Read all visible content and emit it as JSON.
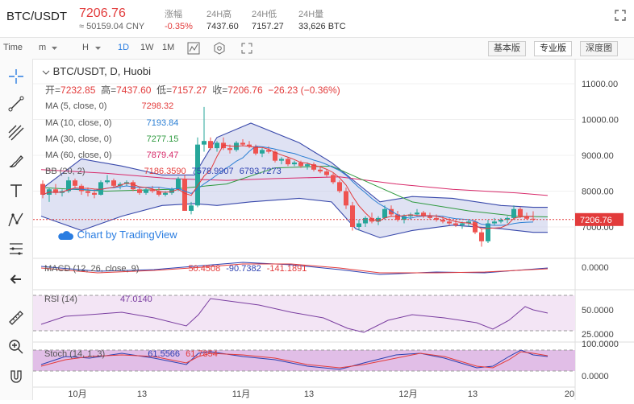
{
  "header": {
    "pair": "BTC/USDT",
    "price": "7206.76",
    "cny": "≈ 50159.04 CNY",
    "stats": [
      {
        "label": "涨幅",
        "value": "-0.35%"
      },
      {
        "label": "24H高",
        "value": "7437.60"
      },
      {
        "label": "24H低",
        "value": "7157.27"
      },
      {
        "label": "24H量",
        "value": "33,626 BTC"
      }
    ]
  },
  "toolbar": {
    "time_label": "Time",
    "intervals": [
      "m",
      "H",
      "1D",
      "1W",
      "1M"
    ],
    "active_interval": "1D",
    "views": [
      "基本版",
      "专业版",
      "深度图"
    ],
    "active_view": "专业版"
  },
  "chart": {
    "symbol_line": "BTC/USDT, D, Huobi",
    "ohlc": {
      "o_label": "开=",
      "o": "7232.85",
      "h_label": "高=",
      "h": "7437.60",
      "l_label": "低=",
      "l": "7157.27",
      "c_label": "收=",
      "c": "7206.76",
      "chg": "−26.23 (−0.36%)"
    },
    "ma": [
      {
        "label": "MA (5, close, 0)",
        "value": "7298.32",
        "color": "#e33b3b"
      },
      {
        "label": "MA (10, close, 0)",
        "value": "7193.84",
        "color": "#2b7fd4"
      },
      {
        "label": "MA (30, close, 0)",
        "value": "7277.15",
        "color": "#2e9a3f"
      },
      {
        "label": "MA (60, close, 0)",
        "value": "7879.47",
        "color": "#d82a6a"
      }
    ],
    "bb": {
      "label": "BB (20, 2)",
      "basis": "7186.3590",
      "upper": "7578.9907",
      "lower": "6793.7273"
    },
    "branding": "Chart by TradingView",
    "last_price_tag": "7206.76",
    "price_axis": [
      "11000.00",
      "10000.00",
      "9000.00",
      "8000.00",
      "7000.00"
    ],
    "x_axis": [
      "10月",
      "13",
      "11月",
      "13",
      "12月",
      "13",
      "20"
    ],
    "macd": {
      "label": "MACD (12, 26, close, 9)",
      "v1": "50.4508",
      "v2": "-90.7382",
      "v3": "-141.1891",
      "axis": [
        "0.0000"
      ]
    },
    "rsi": {
      "label": "RSI (14)",
      "value": "47.0140",
      "axis": [
        "50.0000",
        "25.0000"
      ]
    },
    "stoch": {
      "label": "Stoch (14, 1, 3)",
      "k": "61.5566",
      "d": "61.7854",
      "axis": [
        "100.0000",
        "0.0000"
      ]
    }
  },
  "colors": {
    "up": "#26a69a",
    "down": "#ef5350",
    "accent": "#2a7de1",
    "bb_fill": "#c5cae9"
  }
}
